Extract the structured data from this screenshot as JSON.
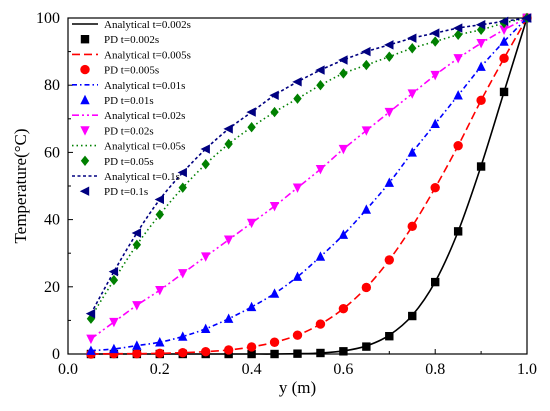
{
  "chart_data": {
    "type": "line",
    "xlabel": "y (m)",
    "ylabel": "Temperature(°C)",
    "xlim": [
      0.0,
      1.0
    ],
    "ylim": [
      0,
      100
    ],
    "xticks": [
      "0.0",
      "0.2",
      "0.4",
      "0.6",
      "0.8",
      "1.0"
    ],
    "yticks": [
      "0",
      "20",
      "40",
      "60",
      "80",
      "100"
    ],
    "legend_position": "top-left",
    "x": [
      0.05,
      0.1,
      0.15,
      0.2,
      0.25,
      0.3,
      0.35,
      0.4,
      0.45,
      0.5,
      0.55,
      0.6,
      0.65,
      0.7,
      0.75,
      0.8,
      0.85,
      0.9,
      0.95,
      1.0
    ],
    "series": [
      {
        "name": "Analytical t=0.002s",
        "kind": "line",
        "dash": "solid",
        "color": "#000000",
        "x": [
          0.05,
          0.1,
          0.15,
          0.2,
          0.25,
          0.3,
          0.35,
          0.4,
          0.45,
          0.5,
          0.55,
          0.6,
          0.65,
          0.7,
          0.75,
          0.8,
          0.85,
          0.9,
          0.95,
          1.0
        ],
        "values": [
          0,
          0,
          0,
          0,
          0,
          0,
          0,
          0,
          0,
          0.1,
          0.3,
          0.9,
          2.4,
          5.6,
          11.5,
          21.5,
          36.5,
          56,
          78,
          100
        ]
      },
      {
        "name": "PD t=0.002s",
        "kind": "marker",
        "marker": "square",
        "color": "#000000",
        "x": [
          0.05,
          0.1,
          0.15,
          0.2,
          0.25,
          0.3,
          0.35,
          0.4,
          0.45,
          0.5,
          0.55,
          0.6,
          0.65,
          0.7,
          0.75,
          0.8,
          0.85,
          0.9,
          0.95,
          1.0
        ],
        "values": [
          0,
          0,
          0,
          0,
          0,
          0,
          0,
          0,
          0,
          0.1,
          0.3,
          0.8,
          2.2,
          5.3,
          11.3,
          21.4,
          36.5,
          55.8,
          78,
          100
        ]
      },
      {
        "name": "Analytical t=0.005s",
        "kind": "line",
        "dash": "dash",
        "color": "#ff0000",
        "x": [
          0.05,
          0.1,
          0.15,
          0.2,
          0.25,
          0.3,
          0.35,
          0.4,
          0.45,
          0.5,
          0.55,
          0.6,
          0.65,
          0.7,
          0.75,
          0.8,
          0.85,
          0.9,
          0.95,
          1.0
        ],
        "values": [
          0,
          0.1,
          0.1,
          0.2,
          0.4,
          0.7,
          1.2,
          2.1,
          3.5,
          5.6,
          8.9,
          13.5,
          19.8,
          28,
          38,
          49.5,
          62,
          75.5,
          88,
          100
        ]
      },
      {
        "name": "PD t=0.005s",
        "kind": "marker",
        "marker": "circle",
        "color": "#ff0000",
        "x": [
          0.05,
          0.1,
          0.15,
          0.2,
          0.25,
          0.3,
          0.35,
          0.4,
          0.45,
          0.5,
          0.55,
          0.6,
          0.65,
          0.7,
          0.75,
          0.8,
          0.85,
          0.9,
          0.95,
          1.0
        ],
        "values": [
          0,
          0.1,
          0.1,
          0.2,
          0.4,
          0.7,
          1.2,
          2.1,
          3.5,
          5.6,
          8.9,
          13.5,
          19.8,
          28,
          38,
          49.5,
          62,
          75.5,
          88,
          100
        ]
      },
      {
        "name": "Analytical t=0.01s",
        "kind": "line",
        "dash": "dashdot",
        "color": "#0000ff",
        "x": [
          0.05,
          0.1,
          0.15,
          0.2,
          0.25,
          0.3,
          0.35,
          0.4,
          0.45,
          0.5,
          0.55,
          0.6,
          0.65,
          0.7,
          0.75,
          0.8,
          0.85,
          0.9,
          0.95,
          1.0
        ],
        "values": [
          1,
          1.5,
          2.5,
          3.5,
          5.2,
          7.5,
          10.5,
          14,
          18,
          23,
          29,
          35.5,
          43,
          51,
          60,
          68.5,
          77,
          85.5,
          93,
          100
        ]
      },
      {
        "name": "PD t=0.01s",
        "kind": "marker",
        "marker": "triangle-up",
        "color": "#0000ff",
        "x": [
          0.05,
          0.1,
          0.15,
          0.2,
          0.25,
          0.3,
          0.35,
          0.4,
          0.45,
          0.5,
          0.55,
          0.6,
          0.65,
          0.7,
          0.75,
          0.8,
          0.85,
          0.9,
          0.95,
          1.0
        ],
        "values": [
          1,
          1.5,
          2.5,
          3.5,
          5.2,
          7.5,
          10.5,
          14,
          18,
          23,
          29,
          35.5,
          43,
          51,
          60,
          68.5,
          77,
          85.5,
          93,
          100
        ]
      },
      {
        "name": "Analytical t=0.02s",
        "kind": "line",
        "dash": "dashdotdot",
        "color": "#ff00ff",
        "x": [
          0.05,
          0.1,
          0.15,
          0.2,
          0.25,
          0.3,
          0.35,
          0.4,
          0.45,
          0.5,
          0.55,
          0.6,
          0.65,
          0.7,
          0.75,
          0.8,
          0.85,
          0.9,
          0.95,
          1.0
        ],
        "values": [
          4.5,
          9.5,
          14.5,
          19,
          24,
          29,
          34,
          39,
          44,
          49.5,
          55,
          61,
          66.5,
          72,
          77.5,
          83,
          88,
          92.5,
          96.5,
          100
        ]
      },
      {
        "name": "PD t=0.02s",
        "kind": "marker",
        "marker": "triangle-down",
        "color": "#ff00ff",
        "x": [
          0.05,
          0.1,
          0.15,
          0.2,
          0.25,
          0.3,
          0.35,
          0.4,
          0.45,
          0.5,
          0.55,
          0.6,
          0.65,
          0.7,
          0.75,
          0.8,
          0.85,
          0.9,
          0.95,
          1.0
        ],
        "values": [
          4.5,
          9.5,
          14.5,
          19,
          24,
          29,
          34,
          39,
          44,
          49.5,
          55,
          61,
          66.5,
          72,
          77.5,
          83,
          88,
          92.5,
          96.5,
          100
        ]
      },
      {
        "name": "Analytical t=0.05s",
        "kind": "line",
        "dash": "dot",
        "color": "#008000",
        "x": [
          0.05,
          0.1,
          0.15,
          0.2,
          0.25,
          0.3,
          0.35,
          0.4,
          0.45,
          0.5,
          0.55,
          0.6,
          0.65,
          0.7,
          0.75,
          0.8,
          0.85,
          0.9,
          0.95,
          1.0
        ],
        "values": [
          11,
          22,
          32.5,
          41.5,
          49.5,
          56.5,
          62.5,
          67.5,
          72,
          76,
          80,
          83.5,
          86,
          88.5,
          91,
          93,
          95,
          96.5,
          98.5,
          100
        ]
      },
      {
        "name": "PD t=0.05s",
        "kind": "marker",
        "marker": "diamond",
        "color": "#008000",
        "x": [
          0.05,
          0.1,
          0.15,
          0.2,
          0.25,
          0.3,
          0.35,
          0.4,
          0.45,
          0.5,
          0.55,
          0.6,
          0.65,
          0.7,
          0.75,
          0.8,
          0.85,
          0.9,
          0.95,
          1.0
        ],
        "values": [
          10.5,
          22,
          32.5,
          41.5,
          49.5,
          56.5,
          62.5,
          67.5,
          72,
          76,
          80,
          83.5,
          86,
          88.5,
          91,
          93,
          95,
          96.5,
          98.5,
          100
        ]
      },
      {
        "name": "Analytical t=0.1s",
        "kind": "line",
        "dash": "shortdash",
        "color": "#000080",
        "x": [
          0.05,
          0.1,
          0.15,
          0.2,
          0.25,
          0.3,
          0.35,
          0.4,
          0.45,
          0.5,
          0.55,
          0.6,
          0.65,
          0.7,
          0.75,
          0.8,
          0.85,
          0.9,
          0.95,
          1.0
        ],
        "values": [
          12,
          24.5,
          36,
          46,
          54,
          61,
          67,
          72,
          77,
          81,
          84.5,
          87.5,
          90,
          92,
          94,
          95.5,
          97,
          98,
          99,
          100
        ]
      },
      {
        "name": "PD t=0.1s",
        "kind": "marker",
        "marker": "triangle-left",
        "color": "#000080",
        "x": [
          0.05,
          0.1,
          0.15,
          0.2,
          0.25,
          0.3,
          0.35,
          0.4,
          0.45,
          0.5,
          0.55,
          0.6,
          0.65,
          0.7,
          0.75,
          0.8,
          0.85,
          0.9,
          0.95,
          1.0
        ],
        "values": [
          12,
          24.5,
          36,
          46,
          54,
          61,
          67,
          72,
          77,
          81,
          84.5,
          87.5,
          90,
          92,
          94,
          95.5,
          97,
          98,
          99,
          100
        ]
      }
    ]
  }
}
